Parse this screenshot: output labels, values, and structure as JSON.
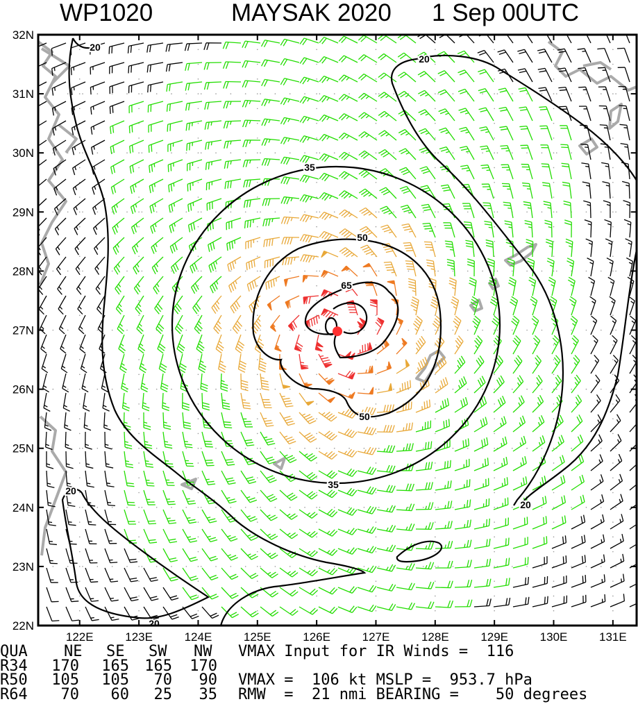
{
  "header": {
    "storm_id": "WP1020",
    "storm_name_year": "MAYSAK 2020",
    "date_time": "1 Sep 00UTC"
  },
  "axes": {
    "lon_range": [
      121.3,
      131.4
    ],
    "lat_range": [
      22,
      32
    ],
    "lon_ticks": [
      "122E",
      "123E",
      "124E",
      "125E",
      "126E",
      "127E",
      "128E",
      "129E",
      "130E",
      "131E"
    ],
    "lat_ticks": [
      "22N",
      "23N",
      "24N",
      "25N",
      "26N",
      "27N",
      "28N",
      "29N",
      "30N",
      "31N",
      "32N"
    ]
  },
  "chart_data": {
    "type": "wind-barb map",
    "title": "WP1020 MAYSAK 2020 1 Sep 00UTC",
    "storm_center": {
      "lon": 126.35,
      "lat": 26.98
    },
    "contour_levels_kt": [
      20,
      35,
      50,
      65
    ],
    "contour_labels": [
      "20",
      "20",
      "20",
      "20",
      "35",
      "35",
      "50",
      "50",
      "65"
    ],
    "vmax_kt": 106,
    "rmw_nmi": 21,
    "color_scale": [
      {
        "min_kt": 0,
        "color": "#000000"
      },
      {
        "min_kt": 20,
        "color": "#22dd00"
      },
      {
        "min_kt": 35,
        "color": "#e8a838"
      },
      {
        "min_kt": 50,
        "color": "#ee7a22"
      },
      {
        "min_kt": 65,
        "color": "#ee3030"
      }
    ],
    "center_color": "#ff3030",
    "coast_color": "#aaaaaa"
  },
  "table": {
    "headers": [
      "QUA",
      "NE",
      "SE",
      "SW",
      "NW"
    ],
    "rows": [
      {
        "label": "R34",
        "values": [
          "170",
          "165",
          "165",
          "170"
        ]
      },
      {
        "label": "R50",
        "values": [
          "105",
          "105",
          "70",
          "90"
        ]
      },
      {
        "label": "R64",
        "values": [
          "70",
          "60",
          "25",
          "35"
        ]
      }
    ]
  },
  "info": {
    "line1": "VMAX Input for IR Winds =  116",
    "line2": "VMAX =  106 kt MSLP =  953.7 hPa",
    "line3": "RMW  =  21 nmi BEARING =    50 degrees"
  }
}
